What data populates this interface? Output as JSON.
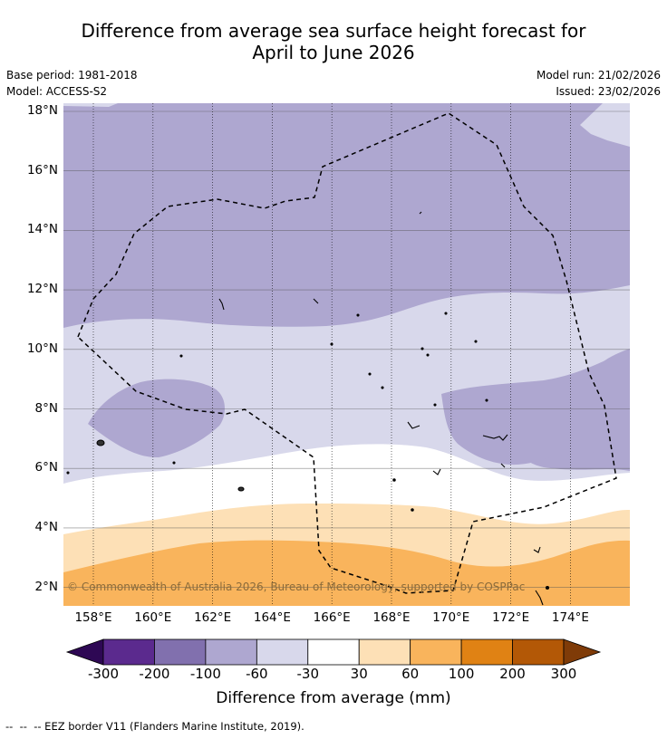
{
  "title": {
    "line1": "Difference from average sea surface height forecast for",
    "line2": "April to June 2026"
  },
  "meta": {
    "base_period": "Base period: 1981-2018",
    "model": "Model: ACCESS-S2",
    "model_run": "Model run: 21/02/2026",
    "issued": "Issued: 23/02/2026"
  },
  "map": {
    "lat_ticks": [
      {
        "value": 18,
        "label": "18°N"
      },
      {
        "value": 16,
        "label": "16°N"
      },
      {
        "value": 14,
        "label": "14°N"
      },
      {
        "value": 12,
        "label": "12°N"
      },
      {
        "value": 10,
        "label": "10°N"
      },
      {
        "value": 8,
        "label": "8°N"
      },
      {
        "value": 6,
        "label": "6°N"
      },
      {
        "value": 4,
        "label": "4°N"
      },
      {
        "value": 2,
        "label": "2°N"
      }
    ],
    "lon_ticks": [
      {
        "value": 158,
        "label": "158°E"
      },
      {
        "value": 160,
        "label": "160°E"
      },
      {
        "value": 162,
        "label": "162°E"
      },
      {
        "value": 164,
        "label": "164°E"
      },
      {
        "value": 166,
        "label": "166°E"
      },
      {
        "value": 168,
        "label": "168°E"
      },
      {
        "value": 170,
        "label": "170°E"
      },
      {
        "value": 172,
        "label": "172°E"
      },
      {
        "value": 174,
        "label": "174°E"
      }
    ],
    "copyright": "© Commonwealth of Australia 2026, Bureau of Meteorology, supported by COSPPac"
  },
  "colorbar": {
    "colors": [
      "#2e0854",
      "#5b2a8e",
      "#8170ae",
      "#aea7d0",
      "#d8d8eb",
      "#ffffff",
      "#fde0b6",
      "#f9b45c",
      "#e08214",
      "#b35806",
      "#7f3b08"
    ],
    "labels": [
      "-300",
      "-200",
      "-100",
      "-60",
      "-30",
      "30",
      "60",
      "100",
      "200",
      "300"
    ],
    "title": "Difference from average (mm)"
  },
  "footnote": "--  --  -- EEZ border V11 (Flanders Marine Institute, 2019)."
}
